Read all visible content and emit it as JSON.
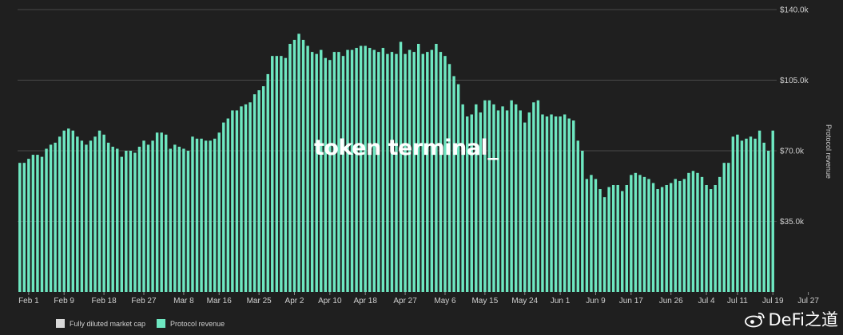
{
  "colors": {
    "background": "#1f1f1f",
    "bar": "#6ee7c1",
    "grid": "#4a4a4a",
    "text": "#cfcfcf",
    "legend_market_cap": "#d9d9d9"
  },
  "watermark": "token terminal_",
  "corner_watermark": {
    "icon": "weibo-icon",
    "text": "DeFi之道"
  },
  "legend": {
    "items": [
      {
        "label": "Fully diluted market cap",
        "color": "#d9d9d9"
      },
      {
        "label": "Protocol revenue",
        "color": "#6ee7c1"
      }
    ]
  },
  "chart_data": {
    "type": "bar",
    "title": "",
    "xlabel": "",
    "ylabel": "Protocol revenue",
    "y_axis_side": "right",
    "ylim": [
      0,
      140000
    ],
    "y_ticks": [
      {
        "value": 35000,
        "label": "$35.0k"
      },
      {
        "value": 70000,
        "label": "$70.0k"
      },
      {
        "value": 105000,
        "label": "$105.0k"
      },
      {
        "value": 140000,
        "label": "$140.0k"
      }
    ],
    "grid": true,
    "x_tick_labels": [
      {
        "label": "Feb 1",
        "index": 2
      },
      {
        "label": "Feb 9",
        "index": 10
      },
      {
        "label": "Feb 18",
        "index": 19
      },
      {
        "label": "Feb 27",
        "index": 28
      },
      {
        "label": "Mar 8",
        "index": 37
      },
      {
        "label": "Mar 16",
        "index": 45
      },
      {
        "label": "Mar 25",
        "index": 54
      },
      {
        "label": "Apr 2",
        "index": 62
      },
      {
        "label": "Apr 10",
        "index": 70
      },
      {
        "label": "Apr 18",
        "index": 78
      },
      {
        "label": "Apr 27",
        "index": 87
      },
      {
        "label": "May 6",
        "index": 96
      },
      {
        "label": "May 15",
        "index": 105
      },
      {
        "label": "May 24",
        "index": 114
      },
      {
        "label": "Jun 1",
        "index": 122
      },
      {
        "label": "Jun 9",
        "index": 130
      },
      {
        "label": "Jun 17",
        "index": 138
      },
      {
        "label": "Jun 26",
        "index": 147
      },
      {
        "label": "Jul 4",
        "index": 155
      },
      {
        "label": "Jul 11",
        "index": 162
      },
      {
        "label": "Jul 19",
        "index": 170
      },
      {
        "label": "Jul 27",
        "index": 178
      }
    ],
    "values": [
      64000,
      64000,
      66000,
      68000,
      68000,
      67000,
      71000,
      73000,
      74000,
      77000,
      80000,
      81000,
      80000,
      77000,
      75000,
      73000,
      75000,
      77000,
      80000,
      78000,
      74000,
      72000,
      71000,
      67000,
      70000,
      70000,
      69000,
      72000,
      75000,
      73000,
      75000,
      79000,
      79000,
      78000,
      71000,
      73000,
      72000,
      71000,
      70000,
      77000,
      76000,
      76000,
      75000,
      75000,
      76000,
      79000,
      84000,
      86000,
      90000,
      90000,
      92000,
      93000,
      94000,
      98000,
      100000,
      102000,
      108000,
      117000,
      117000,
      117000,
      116000,
      123000,
      125000,
      128000,
      125000,
      122000,
      119000,
      118000,
      120000,
      116000,
      115000,
      119000,
      119000,
      117000,
      120000,
      120000,
      121000,
      122000,
      122000,
      121000,
      120000,
      119000,
      121000,
      118000,
      119000,
      118000,
      124000,
      118000,
      120000,
      119000,
      123000,
      118000,
      119000,
      120000,
      123000,
      119000,
      117000,
      113000,
      107000,
      103000,
      93000,
      87000,
      88000,
      93000,
      89000,
      95000,
      95000,
      93000,
      90000,
      92000,
      90000,
      95000,
      93000,
      90000,
      84000,
      89000,
      94000,
      95000,
      88000,
      87000,
      88000,
      87000,
      87000,
      88000,
      86000,
      85000,
      75000,
      70000,
      56000,
      58000,
      56000,
      51000,
      47000,
      52000,
      53000,
      53000,
      50000,
      53000,
      58000,
      59000,
      58000,
      57000,
      56000,
      54000,
      51000,
      52000,
      53000,
      54000,
      56000,
      55000,
      56000,
      59000,
      60000,
      59000,
      57000,
      53000,
      51000,
      53000,
      57000,
      64000,
      64000,
      77000,
      78000,
      75000,
      76000,
      77000,
      76000,
      80000,
      74000,
      70000,
      80000
    ]
  }
}
